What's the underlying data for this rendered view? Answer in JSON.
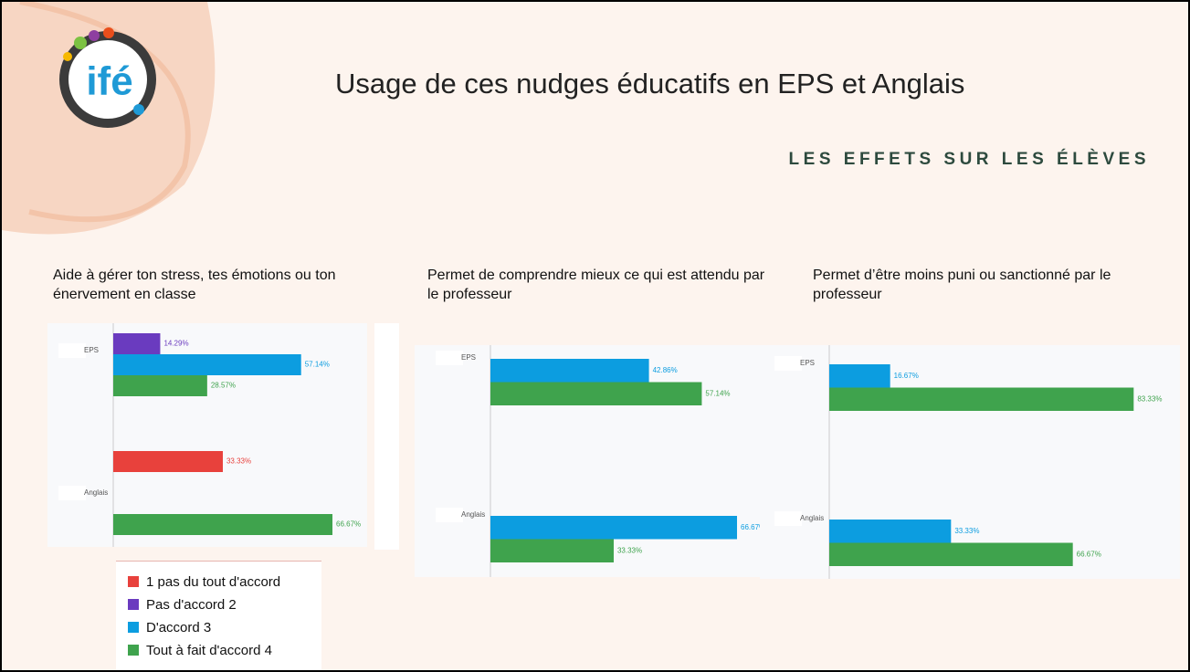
{
  "header": {
    "title": "Usage de ces nudges éducatifs en EPS et Anglais",
    "subtitle": "LES EFFETS SUR LES ÉLÈVES",
    "logo": "ifé"
  },
  "chart_data": [
    {
      "type": "bar",
      "orientation": "horizontal",
      "title": "Aide à gérer ton stress, tes émotions ou ton énervement en classe",
      "categories": [
        "EPS",
        "Anglais"
      ],
      "series": [
        {
          "name": "1 pas du tout d'accord",
          "color": "#e8413c",
          "values": [
            null,
            33.33
          ],
          "value_labels": [
            null,
            "33.33%"
          ]
        },
        {
          "name": "Pas d'accord 2",
          "color": "#6a3bbf",
          "values": [
            14.29,
            null
          ],
          "value_labels": [
            "14.29%",
            null
          ]
        },
        {
          "name": "D'accord 3",
          "color": "#0c9de0",
          "values": [
            57.14,
            null
          ],
          "value_labels": [
            "57.14%",
            null
          ]
        },
        {
          "name": "Tout à fait d'accord 4",
          "color": "#3fa34d",
          "values": [
            28.57,
            66.67
          ],
          "value_labels": [
            "28.57%",
            "66.67%"
          ]
        }
      ],
      "legend": "bottom"
    },
    {
      "type": "bar",
      "orientation": "horizontal",
      "title": "Permet de comprendre mieux ce qui est attendu par le professeur",
      "categories": [
        "EPS",
        "Anglais"
      ],
      "series": [
        {
          "color": "#0c9de0",
          "values": [
            42.86,
            66.67
          ],
          "value_labels": [
            "42.86%",
            "66.67%"
          ]
        },
        {
          "color": "#3fa34d",
          "values": [
            57.14,
            33.33
          ],
          "value_labels": [
            "57.14%",
            "33.33%"
          ]
        }
      ]
    },
    {
      "type": "bar",
      "orientation": "horizontal",
      "title": "Permet d’être moins puni ou sanctionné par le professeur",
      "categories": [
        "EPS",
        "Anglais"
      ],
      "series": [
        {
          "color": "#0c9de0",
          "values": [
            16.67,
            33.33
          ],
          "value_labels": [
            "16.67%",
            "33.33%"
          ]
        },
        {
          "color": "#3fa34d",
          "values": [
            83.33,
            66.67
          ],
          "value_labels": [
            "83.33%",
            "66.67%"
          ]
        }
      ]
    }
  ]
}
